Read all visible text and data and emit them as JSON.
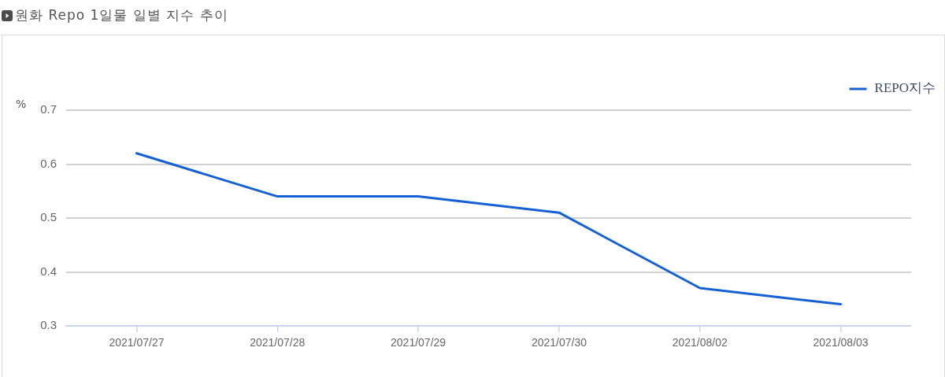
{
  "chart_data": {
    "type": "line",
    "title": "원화 Repo 1일물 일별 지수 추이",
    "ylabel": "%",
    "categories": [
      "2021/07/27",
      "2021/07/28",
      "2021/07/29",
      "2021/07/30",
      "2021/08/02",
      "2021/08/03"
    ],
    "series": [
      {
        "name": "REPO지수",
        "color": "#1560d4",
        "values": [
          0.62,
          0.54,
          0.54,
          0.51,
          0.37,
          0.34
        ]
      }
    ],
    "ylim": [
      0.3,
      0.7
    ],
    "yticks": [
      0.3,
      0.4,
      0.5,
      0.6,
      0.7
    ],
    "grid": "y",
    "legend": "top right",
    "marker": "none",
    "line_style": "solid"
  }
}
